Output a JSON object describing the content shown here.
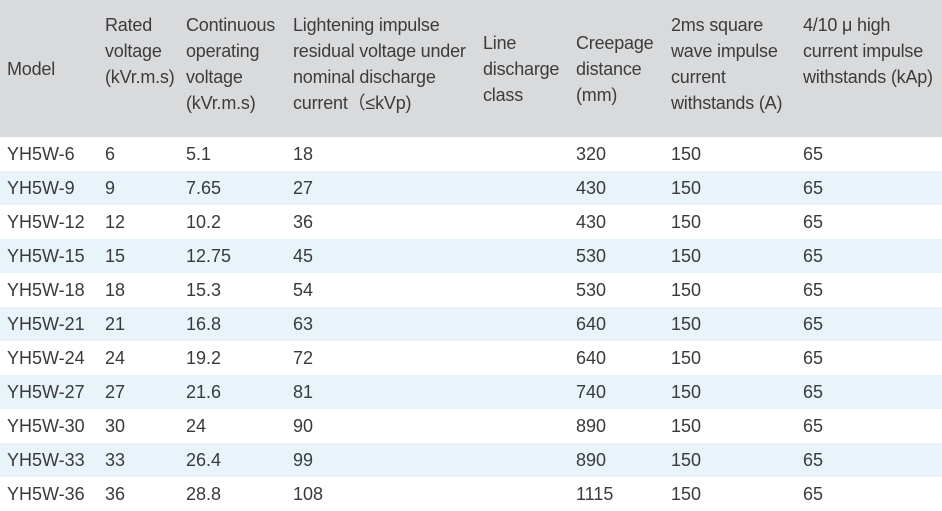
{
  "headers": [
    {
      "lines": [
        "Model"
      ]
    },
    {
      "lines": [
        "Rated",
        "voltage",
        "(kVr.m.s)"
      ]
    },
    {
      "lines": [
        "Continuous",
        "operating",
        "voltage",
        "(kVr.m.s)"
      ]
    },
    {
      "lines": [
        "Lightening impulse",
        "residual voltage under",
        "nominal discharge",
        "current（≤kVp)"
      ]
    },
    {
      "lines": [
        "Line",
        "discharge",
        "class"
      ]
    },
    {
      "lines": [
        "Creepage",
        "distance",
        "(mm)"
      ]
    },
    {
      "lines": [
        "2ms square",
        "wave impulse",
        "current",
        "withstands (A)"
      ]
    },
    {
      "lines": [
        "4/10 μ high",
        "current impulse",
        "withstands  (kAp)"
      ]
    }
  ],
  "rows": [
    [
      "YH5W-6",
      "6",
      "5.1",
      "18",
      "",
      "320",
      "150",
      "65"
    ],
    [
      "YH5W-9",
      "9",
      "7.65",
      "27",
      "",
      "430",
      "150",
      "65"
    ],
    [
      "YH5W-12",
      "12",
      "10.2",
      "36",
      "",
      "430",
      "150",
      "65"
    ],
    [
      "YH5W-15",
      "15",
      "12.75",
      "45",
      "",
      "530",
      "150",
      "65"
    ],
    [
      "YH5W-18",
      "18",
      "15.3",
      "54",
      "",
      "530",
      "150",
      "65"
    ],
    [
      "YH5W-21",
      "21",
      "16.8",
      "63",
      "",
      "640",
      "150",
      "65"
    ],
    [
      "YH5W-24",
      "24",
      "19.2",
      "72",
      "",
      "640",
      "150",
      "65"
    ],
    [
      "YH5W-27",
      "27",
      "21.6",
      "81",
      "",
      "740",
      "150",
      "65"
    ],
    [
      "YH5W-30",
      "30",
      "24",
      "90",
      "",
      "890",
      "150",
      "65"
    ],
    [
      "YH5W-33",
      "33",
      "26.4",
      "99",
      "",
      "890",
      "150",
      "65"
    ],
    [
      "YH5W-36",
      "36",
      "28.8",
      "108",
      "",
      "1115",
      "150",
      "65"
    ]
  ],
  "colors": {
    "header_bg": "#d9dadc",
    "stripe_bg": "#e8f3fa",
    "text": "#3a3a3a"
  }
}
